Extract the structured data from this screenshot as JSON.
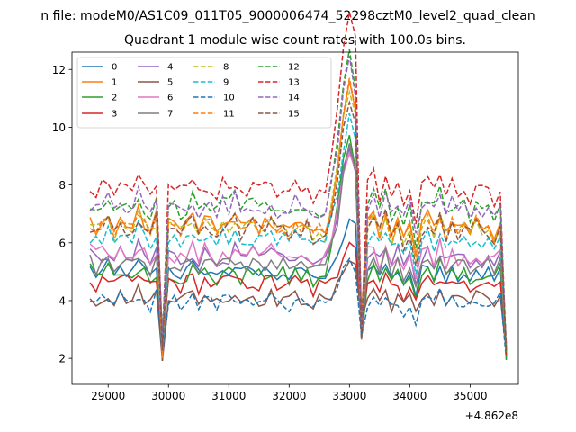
{
  "chart_data": {
    "type": "line",
    "suptitle": "n file: modeM0/AS1C09_011T05_9000006474_52298cztM0_level2_quad_clean",
    "title": "Quadrant 1 module wise count rates with 100.0s bins.",
    "xlabel": "",
    "ylabel": "",
    "x_offset_label": "+4.862e8",
    "xlim": [
      28400,
      35800
    ],
    "ylim": [
      1.1,
      12.6
    ],
    "xticks": [
      29000,
      30000,
      31000,
      32000,
      33000,
      34000,
      35000
    ],
    "xtick_labels": [
      "29000",
      "30000",
      "31000",
      "32000",
      "33000",
      "34000",
      "35000"
    ],
    "yticks": [
      2,
      4,
      6,
      8,
      10,
      12
    ],
    "ytick_labels": [
      "2",
      "4",
      "6",
      "8",
      "10",
      "12"
    ],
    "legend_placement": "top-left",
    "legend_columns": 4,
    "x_start": 28700,
    "x_step": 100,
    "baseline_profile": [
      5.1,
      4.9,
      5.0,
      5.2,
      4.8,
      5.1,
      5.0,
      4.9,
      5.3,
      5.0,
      4.8,
      5.2,
      3.0,
      5.1,
      5.0,
      4.9,
      5.0,
      5.2,
      4.9,
      5.1,
      5.0,
      4.8,
      5.1,
      5.0,
      5.2,
      4.9,
      5.0,
      5.1,
      4.9,
      5.0,
      5.1,
      4.9,
      5.0,
      4.8,
      5.1,
      4.9,
      5.0,
      4.7,
      4.9,
      4.8,
      5.0,
      5.4,
      6.2,
      6.8,
      6.5,
      3.3,
      5.0,
      5.4,
      4.8,
      5.3,
      4.7,
      5.1,
      4.6,
      5.0,
      4.2,
      5.0,
      5.2,
      4.9,
      5.3,
      4.8,
      5.1,
      4.9,
      5.0,
      4.8,
      5.1,
      4.9,
      5.0,
      4.7,
      5.1,
      3.0
    ],
    "series": [
      {
        "name": "0",
        "color": "#1f77b4",
        "dash": false,
        "scale": 1.0,
        "noise": 0.25,
        "amp": 0.0
      },
      {
        "name": "1",
        "color": "#ff7f0e",
        "dash": false,
        "scale": 1.33,
        "noise": 0.25,
        "amp": 2.4
      },
      {
        "name": "2",
        "color": "#2ca02c",
        "dash": false,
        "scale": 0.98,
        "noise": 0.3,
        "amp": 3.2
      },
      {
        "name": "3",
        "color": "#d62728",
        "dash": false,
        "scale": 0.92,
        "noise": 0.3,
        "amp": 0.0
      },
      {
        "name": "4",
        "color": "#9467bd",
        "dash": false,
        "scale": 1.1,
        "noise": 0.3,
        "amp": 2.0
      },
      {
        "name": "5",
        "color": "#8c564b",
        "dash": false,
        "scale": 0.82,
        "noise": 0.25,
        "amp": 0.0
      },
      {
        "name": "6",
        "color": "#e377c2",
        "dash": false,
        "scale": 1.12,
        "noise": 0.3,
        "amp": 1.5
      },
      {
        "name": "7",
        "color": "#7f7f7f",
        "dash": false,
        "scale": 1.05,
        "noise": 0.3,
        "amp": 2.0
      },
      {
        "name": "8",
        "color": "#bcbd22",
        "dash": true,
        "scale": 1.3,
        "noise": 0.25,
        "amp": 2.5
      },
      {
        "name": "9",
        "color": "#17becf",
        "dash": true,
        "scale": 1.22,
        "noise": 0.3,
        "amp": 2.2
      },
      {
        "name": "10",
        "color": "#1f77b4",
        "dash": true,
        "scale": 0.8,
        "noise": 0.25,
        "amp": 0.0
      },
      {
        "name": "11",
        "color": "#ff7f0e",
        "dash": true,
        "scale": 1.32,
        "noise": 0.25,
        "amp": 2.5
      },
      {
        "name": "12",
        "color": "#2ca02c",
        "dash": true,
        "scale": 1.45,
        "noise": 0.3,
        "amp": 2.6
      },
      {
        "name": "13",
        "color": "#d62728",
        "dash": true,
        "scale": 1.58,
        "noise": 0.3,
        "amp": 3.5
      },
      {
        "name": "14",
        "color": "#9467bd",
        "dash": true,
        "scale": 1.45,
        "noise": 0.3,
        "amp": 2.5
      },
      {
        "name": "15",
        "color": "#8c564b",
        "dash": true,
        "scale": 1.3,
        "noise": 0.3,
        "amp": 2.0
      }
    ]
  }
}
